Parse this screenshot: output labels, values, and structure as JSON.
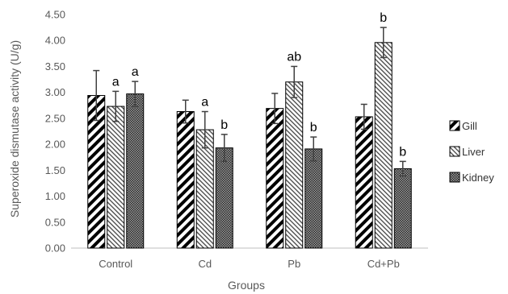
{
  "chart_data": {
    "type": "bar",
    "xlabel": "Groups",
    "ylabel": "Superoxide dismutase activity (U/g)",
    "ylim": [
      0,
      4.5
    ],
    "yticks": [
      "0.00",
      "0.50",
      "1.00",
      "1.50",
      "2.00",
      "2.50",
      "3.00",
      "3.50",
      "4.00",
      "4.50"
    ],
    "categories": [
      "Control",
      "Cd",
      "Pb",
      "Cd+Pb"
    ],
    "series": [
      {
        "name": "Gill",
        "pattern": "gill-pattern",
        "values": [
          2.94,
          2.63,
          2.69,
          2.53
        ],
        "errors": [
          0.48,
          0.22,
          0.29,
          0.24
        ],
        "labels": [
          "",
          "",
          "",
          ""
        ]
      },
      {
        "name": "Liver",
        "pattern": "liver-pattern",
        "values": [
          2.73,
          2.28,
          3.2,
          3.96
        ],
        "errors": [
          0.29,
          0.35,
          0.3,
          0.29
        ],
        "labels": [
          "a",
          "a",
          "ab",
          "b"
        ]
      },
      {
        "name": "Kidney",
        "pattern": "kidney-pattern",
        "values": [
          2.97,
          1.93,
          1.91,
          1.53
        ],
        "errors": [
          0.24,
          0.26,
          0.23,
          0.14
        ],
        "labels": [
          "a",
          "b",
          "b",
          "b"
        ]
      }
    ],
    "grid": false,
    "legend": "right"
  }
}
